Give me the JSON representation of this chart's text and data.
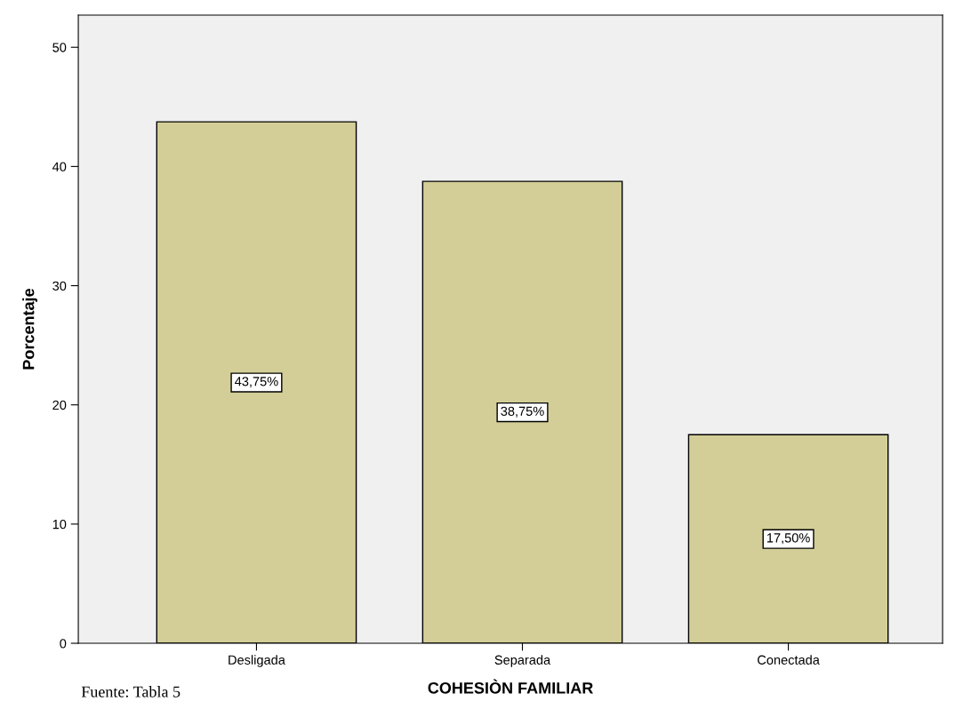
{
  "chart_data": {
    "type": "bar",
    "categories": [
      "Desligada",
      "Separada",
      "Conectada"
    ],
    "values": [
      43.75,
      38.75,
      17.5
    ],
    "value_labels": [
      "43,75%",
      "38,75%",
      "17,50%"
    ],
    "color": "#d3ce97",
    "xlabel": "COHESIÒN FAMILIAR",
    "ylabel": "Porcentaje",
    "ylim": [
      0,
      52.7
    ],
    "yticks": [
      0,
      10,
      20,
      30,
      40,
      50
    ],
    "grid": false,
    "annotations": [
      "Fuente: Tabla 5"
    ]
  }
}
